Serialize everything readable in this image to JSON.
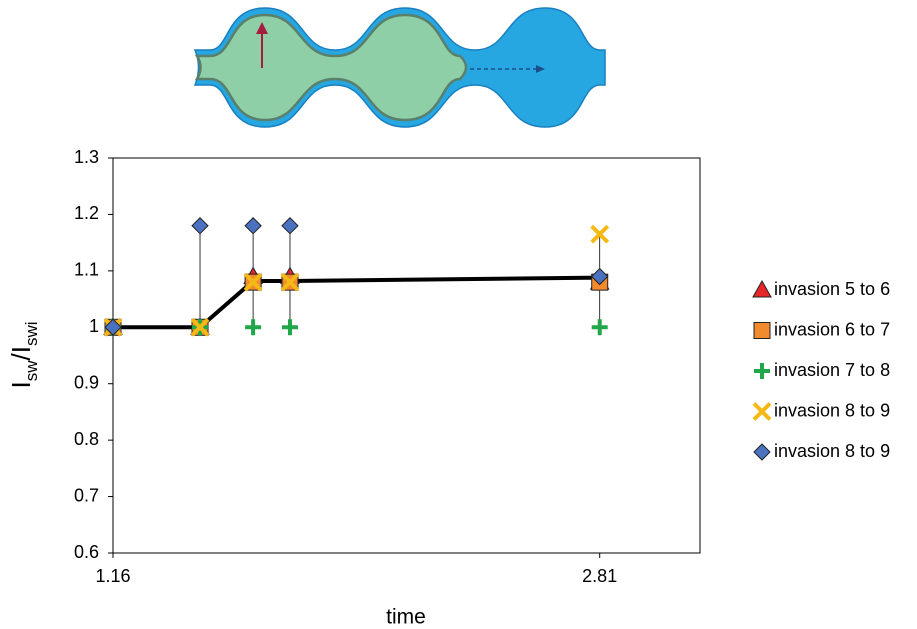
{
  "chart_data": {
    "type": "scatter",
    "xlabel": "time",
    "ylabel": {
      "main": "I",
      "sub": "sw",
      "sep": "/",
      "main2": "I",
      "sub2": "swi"
    },
    "x": [
      1.16,
      1.455,
      1.635,
      1.76,
      2.81
    ],
    "xlim": [
      1.16,
      3.15
    ],
    "xticks": [
      1.16,
      2.81
    ],
    "ylim": [
      0.6,
      1.3
    ],
    "yticks": [
      0.6,
      0.7,
      0.8,
      0.9,
      1,
      1.1,
      1.2,
      1.3
    ],
    "range_lines": true,
    "series": [
      {
        "name": "invasion 5 to 6",
        "marker": "triangle",
        "color": "#e8262a",
        "values": [
          1.0,
          1.0,
          1.09,
          1.09,
          1.08
        ]
      },
      {
        "name": "invasion 6 to 7",
        "marker": "square",
        "color": "#f28a2e",
        "values": [
          1.0,
          1.0,
          1.08,
          1.08,
          1.08
        ]
      },
      {
        "name": "invasion 7 to 8",
        "marker": "plus",
        "color": "#21a74a",
        "values": [
          1.0,
          1.0,
          1.0,
          1.0,
          1.0
        ]
      },
      {
        "name": "invasion 8 to 9",
        "marker": "x",
        "color": "#f5b915",
        "values": [
          1.0,
          1.0,
          1.08,
          1.08,
          1.165
        ]
      },
      {
        "name": "invasion 8 to 9",
        "marker": "diamond",
        "color": "#4a72c0",
        "values": [
          1.0,
          1.18,
          1.18,
          1.18,
          1.09
        ]
      },
      {
        "color": "#000000",
        "line": true,
        "values": [
          1.0,
          1.0,
          1.082,
          1.082,
          1.088
        ]
      }
    ]
  }
}
